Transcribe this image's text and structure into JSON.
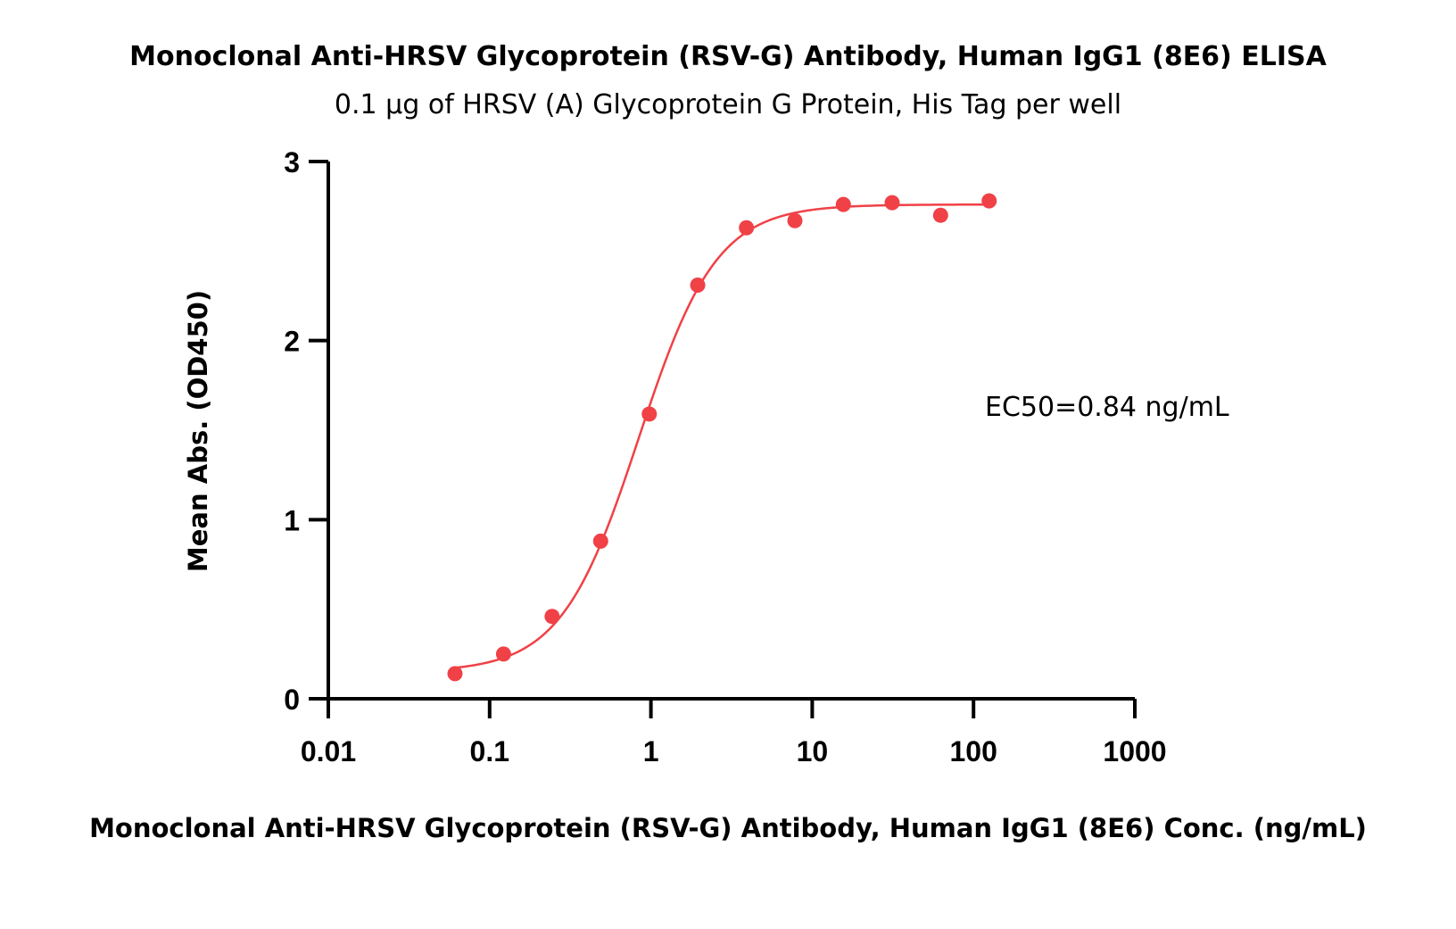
{
  "colors": {
    "series": "#f04147",
    "axis": "#000000"
  },
  "chart_data": {
    "type": "scatter",
    "title": "Monoclonal Anti-HRSV Glycoprotein (RSV-G) Antibody, Human IgG1 (8E6) ELISA",
    "subtitle": "0.1 μg of HRSV (A) Glycoprotein G Protein, His Tag per well",
    "xlabel": "Monoclonal Anti-HRSV Glycoprotein (RSV-G) Antibody, Human IgG1 (8E6) Conc. (ng/mL)",
    "ylabel": "Mean Abs. (OD450)",
    "x_scale": "log",
    "xlim": [
      0.01,
      1000
    ],
    "ylim": [
      0,
      3
    ],
    "x_ticks": [
      0.01,
      0.1,
      1,
      10,
      100,
      1000
    ],
    "x_tick_labels": [
      "0.01",
      "0.1",
      "1",
      "10",
      "100",
      "1000"
    ],
    "y_ticks": [
      0,
      1,
      2,
      3
    ],
    "y_tick_labels": [
      "0",
      "1",
      "2",
      "3"
    ],
    "grid": false,
    "annotation": "EC50=0.84 ng/mL",
    "series": [
      {
        "x": [
          0.061,
          0.122,
          0.244,
          0.488,
          0.977,
          1.95,
          3.91,
          7.81,
          15.6,
          31.3,
          62.5,
          125
        ],
        "y": [
          0.14,
          0.25,
          0.46,
          0.88,
          1.59,
          2.31,
          2.63,
          2.67,
          2.76,
          2.77,
          2.7,
          2.78
        ]
      }
    ],
    "fit_curve": {
      "bottom": 0.15,
      "top": 2.76,
      "ec50": 0.84,
      "hill": 1.8
    }
  }
}
